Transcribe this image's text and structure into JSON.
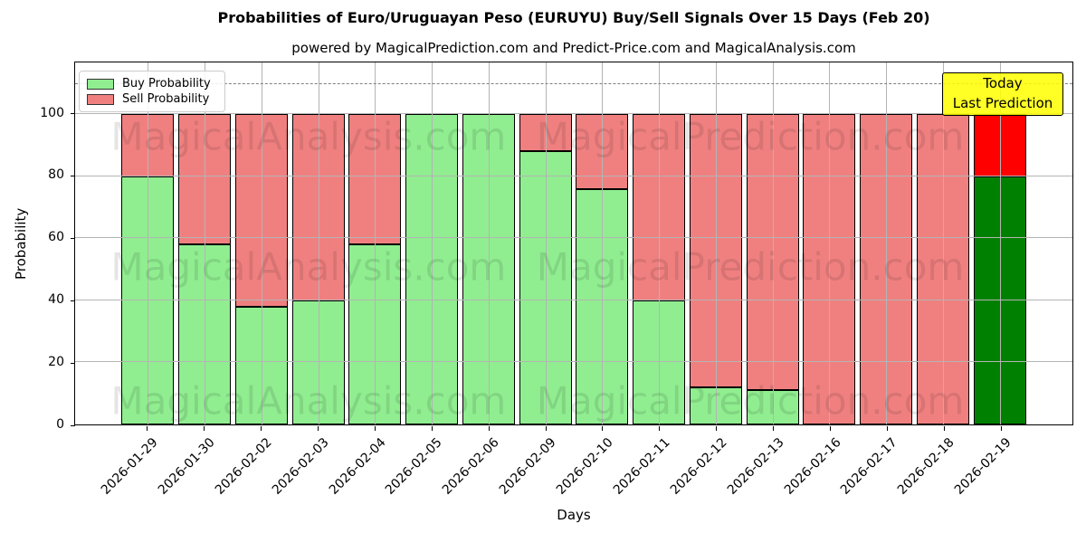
{
  "chart_data": {
    "type": "bar",
    "stacked": true,
    "title": "Probabilities of Euro/Uruguayan Peso (EURUYU) Buy/Sell Signals Over 15 Days (Feb 20)",
    "subtitle": "powered by MagicalPrediction.com and Predict-Price.com and MagicalAnalysis.com",
    "xlabel": "Days",
    "ylabel": "Probability",
    "ylim": [
      0,
      116.7
    ],
    "yticks": [
      0,
      20,
      40,
      60,
      80,
      100
    ],
    "dashed_line_y": 110,
    "grid": true,
    "legend_position": "upper left",
    "categories": [
      "2026-01-29",
      "2026-01-30",
      "2026-02-02",
      "2026-02-03",
      "2026-02-04",
      "2026-02-05",
      "2026-02-06",
      "2026-02-09",
      "2026-02-10",
      "2026-02-11",
      "2026-02-12",
      "2026-02-13",
      "2026-02-16",
      "2026-02-17",
      "2026-02-18",
      "2026-02-19"
    ],
    "series": [
      {
        "name": "Buy Probability",
        "color": "#90EE90",
        "today_color": "#008000",
        "values": [
          80,
          58,
          38,
          40,
          58,
          100,
          100,
          88,
          76,
          40,
          12,
          11,
          0,
          0,
          0,
          80
        ]
      },
      {
        "name": "Sell Probability",
        "color": "#F08080",
        "today_color": "#FF0000",
        "values": [
          20,
          42,
          62,
          60,
          42,
          0,
          0,
          12,
          24,
          60,
          88,
          89,
          100,
          100,
          100,
          20
        ]
      }
    ],
    "today_index": 15
  },
  "annotations": {
    "today_box": {
      "line1": "Today",
      "line2": "Last Prediction",
      "bg_color": "#FFFF00"
    }
  },
  "watermarks": {
    "texts": [
      "MagicalAnalysis.com",
      "MagicalPrediction.com"
    ]
  },
  "colors": {
    "grid": "#b4b4b4",
    "dashed_line": "#7f7f7f",
    "bar_edge": "#000000",
    "background": "#ffffff"
  }
}
